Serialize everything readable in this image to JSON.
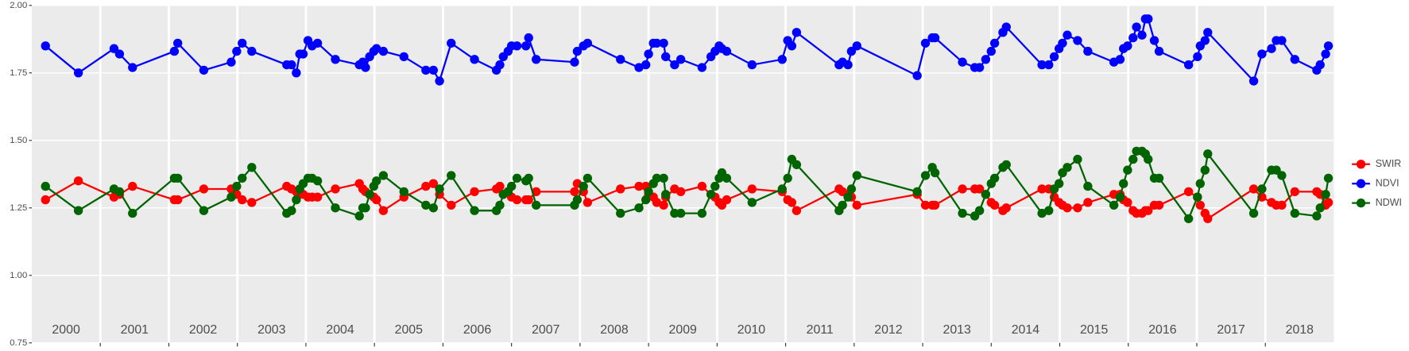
{
  "chart_data": {
    "type": "line",
    "x": [
      2000.2,
      2000.68,
      2001.2,
      2001.28,
      2001.47,
      2002.08,
      2002.13,
      2002.51,
      2002.91,
      2002.99,
      2003.07,
      2003.21,
      2003.72,
      2003.79,
      2003.86,
      2003.91,
      2003.96,
      2004.03,
      2004.09,
      2004.17,
      2004.43,
      2004.78,
      2004.83,
      2004.87,
      2004.93,
      2004.99,
      2005.03,
      2005.13,
      2005.43,
      2005.75,
      2005.86,
      2005.95,
      2006.12,
      2006.46,
      2006.78,
      2006.83,
      2006.88,
      2006.95,
      2007.0,
      2007.08,
      2007.21,
      2007.25,
      2007.36,
      2007.92,
      2007.96,
      2008.05,
      2008.11,
      2008.59,
      2008.86,
      2008.96,
      2009.0,
      2009.07,
      2009.12,
      2009.22,
      2009.25,
      2009.38,
      2009.47,
      2009.78,
      2009.91,
      2009.97,
      2010.03,
      2010.07,
      2010.14,
      2010.51,
      2010.95,
      2011.03,
      2011.09,
      2011.16,
      2011.78,
      2011.83,
      2011.91,
      2011.96,
      2012.04,
      2012.92,
      2013.04,
      2013.14,
      2013.18,
      2013.58,
      2013.76,
      2013.83,
      2013.92,
      2014.0,
      2014.05,
      2014.17,
      2014.22,
      2014.74,
      2014.84,
      2014.92,
      2014.99,
      2015.04,
      2015.11,
      2015.26,
      2015.41,
      2015.79,
      2015.88,
      2015.93,
      2015.99,
      2016.07,
      2016.12,
      2016.2,
      2016.25,
      2016.29,
      2016.38,
      2016.45,
      2016.88,
      2017.01,
      2017.05,
      2017.12,
      2017.16,
      2017.83,
      2017.95,
      2018.09,
      2018.16,
      2018.24,
      2018.43,
      2018.75,
      2018.8,
      2018.88,
      2018.92
    ],
    "series": [
      {
        "name": "SWIR",
        "color": "#ff0000",
        "values": [
          1.28,
          1.35,
          1.29,
          1.3,
          1.33,
          1.28,
          1.28,
          1.32,
          1.32,
          1.3,
          1.28,
          1.27,
          1.33,
          1.32,
          1.31,
          1.3,
          1.3,
          1.29,
          1.29,
          1.29,
          1.32,
          1.34,
          1.32,
          1.31,
          1.3,
          1.29,
          1.28,
          1.24,
          1.29,
          1.33,
          1.34,
          1.3,
          1.26,
          1.31,
          1.32,
          1.33,
          1.3,
          1.31,
          1.29,
          1.28,
          1.28,
          1.28,
          1.31,
          1.31,
          1.34,
          1.31,
          1.27,
          1.32,
          1.33,
          1.33,
          1.3,
          1.29,
          1.27,
          1.26,
          1.29,
          1.32,
          1.31,
          1.33,
          1.3,
          1.29,
          1.27,
          1.26,
          1.28,
          1.32,
          1.31,
          1.28,
          1.27,
          1.24,
          1.32,
          1.31,
          1.3,
          1.29,
          1.26,
          1.3,
          1.26,
          1.26,
          1.26,
          1.32,
          1.32,
          1.32,
          1.3,
          1.27,
          1.26,
          1.24,
          1.25,
          1.32,
          1.32,
          1.29,
          1.27,
          1.26,
          1.25,
          1.25,
          1.27,
          1.3,
          1.3,
          1.28,
          1.27,
          1.24,
          1.23,
          1.23,
          1.24,
          1.24,
          1.26,
          1.26,
          1.31,
          1.29,
          1.26,
          1.23,
          1.21,
          1.32,
          1.29,
          1.27,
          1.26,
          1.26,
          1.31,
          1.31,
          1.3,
          1.26,
          1.27
        ]
      },
      {
        "name": "NDVI",
        "color": "#0000ff",
        "values": [
          1.85,
          1.75,
          1.84,
          1.82,
          1.77,
          1.83,
          1.86,
          1.76,
          1.79,
          1.83,
          1.86,
          1.83,
          1.78,
          1.78,
          1.75,
          1.82,
          1.82,
          1.87,
          1.85,
          1.86,
          1.8,
          1.78,
          1.79,
          1.77,
          1.81,
          1.83,
          1.84,
          1.83,
          1.81,
          1.76,
          1.76,
          1.72,
          1.86,
          1.8,
          1.76,
          1.78,
          1.81,
          1.83,
          1.85,
          1.85,
          1.85,
          1.88,
          1.8,
          1.79,
          1.83,
          1.85,
          1.86,
          1.8,
          1.77,
          1.78,
          1.82,
          1.86,
          1.86,
          1.86,
          1.81,
          1.78,
          1.8,
          1.77,
          1.81,
          1.83,
          1.85,
          1.84,
          1.83,
          1.78,
          1.8,
          1.87,
          1.85,
          1.9,
          1.78,
          1.79,
          1.78,
          1.83,
          1.85,
          1.74,
          1.86,
          1.88,
          1.88,
          1.79,
          1.77,
          1.77,
          1.8,
          1.83,
          1.86,
          1.9,
          1.92,
          1.78,
          1.78,
          1.81,
          1.84,
          1.86,
          1.89,
          1.87,
          1.83,
          1.79,
          1.8,
          1.84,
          1.85,
          1.88,
          1.92,
          1.89,
          1.95,
          1.95,
          1.87,
          1.83,
          1.78,
          1.81,
          1.85,
          1.87,
          1.9,
          1.72,
          1.82,
          1.84,
          1.87,
          1.87,
          1.8,
          1.76,
          1.78,
          1.82,
          1.85
        ]
      },
      {
        "name": "NDWI",
        "color": "#006400",
        "values": [
          1.33,
          1.24,
          1.32,
          1.31,
          1.23,
          1.36,
          1.36,
          1.24,
          1.29,
          1.33,
          1.36,
          1.4,
          1.23,
          1.24,
          1.28,
          1.32,
          1.34,
          1.36,
          1.36,
          1.35,
          1.25,
          1.22,
          1.25,
          1.25,
          1.3,
          1.33,
          1.35,
          1.37,
          1.31,
          1.26,
          1.25,
          1.32,
          1.37,
          1.24,
          1.24,
          1.26,
          1.3,
          1.31,
          1.33,
          1.36,
          1.35,
          1.36,
          1.26,
          1.26,
          1.28,
          1.33,
          1.36,
          1.23,
          1.25,
          1.28,
          1.31,
          1.34,
          1.36,
          1.36,
          1.3,
          1.23,
          1.23,
          1.23,
          1.3,
          1.33,
          1.36,
          1.38,
          1.36,
          1.27,
          1.32,
          1.36,
          1.43,
          1.41,
          1.24,
          1.26,
          1.29,
          1.32,
          1.37,
          1.31,
          1.37,
          1.4,
          1.38,
          1.23,
          1.22,
          1.24,
          1.3,
          1.34,
          1.36,
          1.4,
          1.41,
          1.23,
          1.24,
          1.32,
          1.34,
          1.38,
          1.4,
          1.43,
          1.33,
          1.26,
          1.29,
          1.34,
          1.39,
          1.43,
          1.46,
          1.46,
          1.45,
          1.43,
          1.36,
          1.36,
          1.21,
          1.29,
          1.34,
          1.39,
          1.45,
          1.23,
          1.32,
          1.39,
          1.39,
          1.37,
          1.23,
          1.22,
          1.25,
          1.3,
          1.36
        ]
      }
    ],
    "xlim": [
      2000,
      2019
    ],
    "xticks": [
      2001,
      2002,
      2003,
      2004,
      2005,
      2006,
      2007,
      2008,
      2009,
      2010,
      2011,
      2012,
      2013,
      2014,
      2015,
      2016,
      2017,
      2018
    ],
    "year_labels": [
      {
        "value": 2000.5,
        "label": "2000"
      },
      {
        "value": 2001.5,
        "label": "2001"
      },
      {
        "value": 2002.5,
        "label": "2002"
      },
      {
        "value": 2003.5,
        "label": "2003"
      },
      {
        "value": 2004.5,
        "label": "2004"
      },
      {
        "value": 2005.5,
        "label": "2005"
      },
      {
        "value": 2006.5,
        "label": "2006"
      },
      {
        "value": 2007.5,
        "label": "2007"
      },
      {
        "value": 2008.5,
        "label": "2008"
      },
      {
        "value": 2009.5,
        "label": "2009"
      },
      {
        "value": 2010.5,
        "label": "2010"
      },
      {
        "value": 2011.5,
        "label": "2011"
      },
      {
        "value": 2012.5,
        "label": "2012"
      },
      {
        "value": 2013.5,
        "label": "2013"
      },
      {
        "value": 2014.5,
        "label": "2014"
      },
      {
        "value": 2015.5,
        "label": "2015"
      },
      {
        "value": 2016.5,
        "label": "2016"
      },
      {
        "value": 2017.5,
        "label": "2017"
      },
      {
        "value": 2018.5,
        "label": "2018"
      }
    ],
    "ylim": [
      0.75,
      2.0
    ],
    "yticks": [
      {
        "value": 0.75,
        "label": "0.75"
      },
      {
        "value": 1.0,
        "label": "1.00"
      },
      {
        "value": 1.25,
        "label": "1.25"
      },
      {
        "value": 1.5,
        "label": "1.50"
      },
      {
        "value": 1.75,
        "label": "1.75"
      },
      {
        "value": 2.0,
        "label": "2.00"
      }
    ],
    "grid": true,
    "legend": "right"
  }
}
